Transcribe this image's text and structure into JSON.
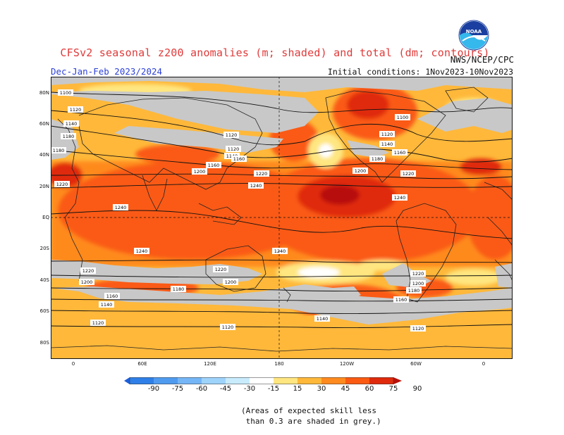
{
  "title": "CFSv2 seasonal z200 anomalies (m; shaded) and total (dm; contours)",
  "season": "Dec-Jan-Feb 2023/2024",
  "agency": "NWS/NCEP/CPC",
  "initial_conditions": "Initial conditions: 1Nov2023-10Nov2023",
  "logo_icon": "noaa-logo-icon",
  "lat_labels": [
    "80N",
    "60N",
    "40N",
    "20N",
    "EQ",
    "20S",
    "40S",
    "60S",
    "80S"
  ],
  "lon_labels": [
    "0",
    "60E",
    "120E",
    "180",
    "120W",
    "60W",
    "0"
  ],
  "colorbar": {
    "labels": [
      "-90",
      "-75",
      "-60",
      "-45",
      "-30",
      "-15",
      "15",
      "30",
      "45",
      "60",
      "75",
      "90"
    ],
    "colors": [
      "#1e5fd9",
      "#2f7fe8",
      "#4f9bf0",
      "#74b6f6",
      "#9ed3fb",
      "#c9ecfd",
      "#ffffff",
      "#ffe680",
      "#ffb83a",
      "#ff8a1e",
      "#fa5a12",
      "#e02a0c",
      "#b81008"
    ]
  },
  "contour_labels": [
    "1100",
    "1120",
    "1140",
    "1160",
    "1180",
    "1200",
    "1220",
    "1240"
  ],
  "colors": {
    "land": "#c8c8c8",
    "coast": "#222222",
    "contour": "#111111",
    "grid": "#111111"
  },
  "note_lines": [
    "(Areas of expected skill less",
    " than 0.3 are shaded in grey.)"
  ]
}
